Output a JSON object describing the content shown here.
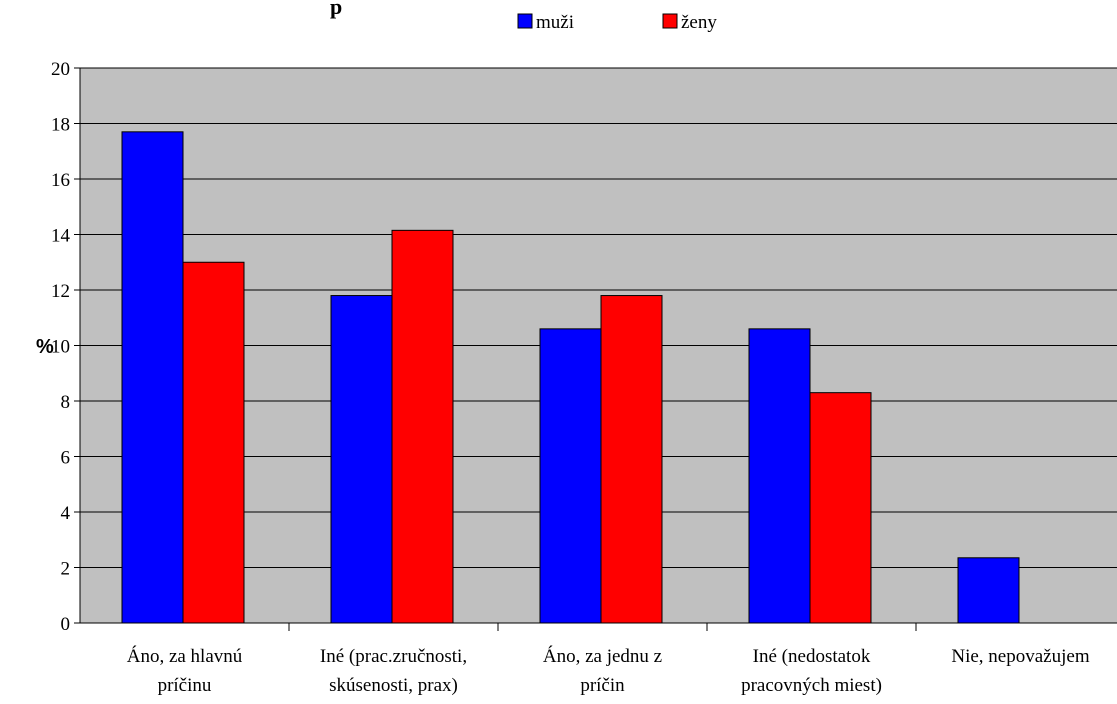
{
  "chart_data": {
    "type": "bar",
    "title": "",
    "title_partial_visible": "p",
    "ylabel": "%",
    "xlabel": "",
    "ylim": [
      0,
      20
    ],
    "yticks": [
      0,
      2,
      4,
      6,
      8,
      10,
      12,
      14,
      16,
      18,
      20
    ],
    "grid": true,
    "legend_position": "top",
    "categories": [
      [
        "Áno, za hlavnú",
        "príčinu"
      ],
      [
        "Iné (prac.zručnosti,",
        "skúsenosti, prax)"
      ],
      [
        "Áno, za jednu z",
        "príčin"
      ],
      [
        "Iné (nedostatok",
        "pracovných miest)"
      ],
      [
        "Nie, nepovažujem"
      ]
    ],
    "series": [
      {
        "name": "muži",
        "color": "#0000FF",
        "values": [
          17.7,
          11.8,
          10.6,
          10.6,
          2.35
        ]
      },
      {
        "name": "ženy",
        "color": "#FF0000",
        "values": [
          13.0,
          14.15,
          11.8,
          8.3,
          null
        ]
      }
    ],
    "plot_background": "#C0C0C0"
  }
}
